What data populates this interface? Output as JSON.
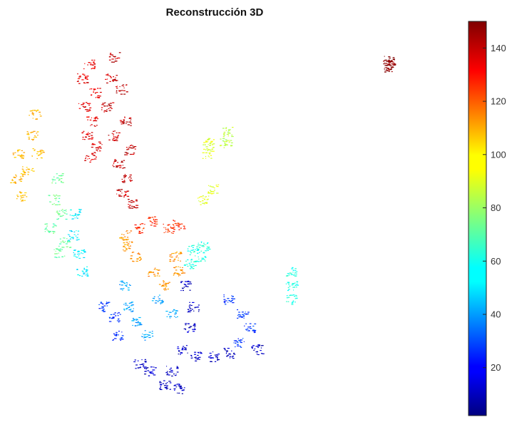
{
  "chart_data": {
    "type": "scatter",
    "title": "Reconstrucción 3D",
    "description_free": true,
    "colormap": "jet",
    "colorbar": {
      "range": [
        2,
        150
      ],
      "ticks": [
        {
          "value": 20,
          "label": "20"
        },
        {
          "value": 40,
          "label": "40"
        },
        {
          "value": 60,
          "label": "60"
        },
        {
          "value": 80,
          "label": "80"
        },
        {
          "value": 100,
          "label": "100"
        },
        {
          "value": 120,
          "label": "120"
        },
        {
          "value": 140,
          "label": "140"
        }
      ],
      "placement": "right"
    },
    "axes_visible": false,
    "grid": false,
    "clusters": [
      {
        "value": 135,
        "points": [
          [
            125,
            90
          ],
          [
            115,
            110
          ],
          [
            132,
            130
          ],
          [
            118,
            150
          ],
          [
            128,
            170
          ],
          [
            122,
            190
          ],
          [
            135,
            205
          ],
          [
            126,
            220
          ]
        ]
      },
      {
        "value": 140,
        "points": [
          [
            160,
            80
          ],
          [
            155,
            110
          ],
          [
            170,
            125
          ],
          [
            150,
            150
          ],
          [
            175,
            170
          ],
          [
            158,
            190
          ],
          [
            182,
            210
          ],
          [
            165,
            230
          ],
          [
            178,
            250
          ],
          [
            170,
            270
          ],
          [
            185,
            285
          ]
        ]
      },
      {
        "value": 148,
        "points": [
          [
            545,
            85
          ],
          [
            545,
            90
          ],
          [
            545,
            95
          ]
        ]
      },
      {
        "value": 105,
        "points": [
          [
            48,
            160
          ],
          [
            45,
            190
          ],
          [
            52,
            215
          ],
          [
            38,
            240
          ],
          [
            25,
            215
          ],
          [
            22,
            250
          ],
          [
            30,
            275
          ]
        ]
      },
      {
        "value": 72,
        "points": [
          [
            80,
            250
          ],
          [
            75,
            280
          ],
          [
            85,
            300
          ],
          [
            70,
            320
          ],
          [
            90,
            340
          ],
          [
            82,
            355
          ]
        ]
      },
      {
        "value": 55,
        "points": [
          [
            105,
            300
          ],
          [
            102,
            330
          ],
          [
            110,
            355
          ],
          [
            115,
            380
          ]
        ]
      },
      {
        "value": 90,
        "points": [
          [
            292,
            200
          ],
          [
            290,
            215
          ],
          [
            298,
            265
          ],
          [
            285,
            280
          ]
        ]
      },
      {
        "value": 85,
        "points": [
          [
            318,
            185
          ],
          [
            316,
            200
          ]
        ]
      },
      {
        "value": 110,
        "points": [
          [
            175,
            330
          ],
          [
            180,
            345
          ],
          [
            190,
            360
          ],
          [
            215,
            380
          ],
          [
            230,
            400
          ],
          [
            250,
            380
          ],
          [
            245,
            360
          ]
        ]
      },
      {
        "value": 125,
        "points": [
          [
            195,
            320
          ],
          [
            215,
            310
          ],
          [
            235,
            320
          ],
          [
            250,
            315
          ]
        ]
      },
      {
        "value": 62,
        "points": [
          [
            270,
            350
          ],
          [
            285,
            345
          ],
          [
            280,
            360
          ],
          [
            265,
            370
          ],
          [
            408,
            380
          ],
          [
            408,
            400
          ],
          [
            408,
            420
          ]
        ]
      },
      {
        "value": 45,
        "points": [
          [
            175,
            400
          ],
          [
            180,
            430
          ],
          [
            220,
            420
          ],
          [
            240,
            440
          ],
          [
            190,
            450
          ],
          [
            205,
            470
          ]
        ]
      },
      {
        "value": 28,
        "points": [
          [
            145,
            430
          ],
          [
            160,
            445
          ],
          [
            165,
            470
          ],
          [
            320,
            420
          ],
          [
            340,
            440
          ],
          [
            350,
            460
          ],
          [
            335,
            480
          ]
        ]
      },
      {
        "value": 12,
        "points": [
          [
            260,
            400
          ],
          [
            270,
            430
          ],
          [
            265,
            460
          ],
          [
            255,
            490
          ],
          [
            275,
            500
          ],
          [
            240,
            520
          ],
          [
            230,
            540
          ],
          [
            250,
            545
          ],
          [
            210,
            520
          ],
          [
            195,
            510
          ],
          [
            300,
            500
          ],
          [
            320,
            495
          ],
          [
            360,
            490
          ]
        ]
      }
    ]
  }
}
